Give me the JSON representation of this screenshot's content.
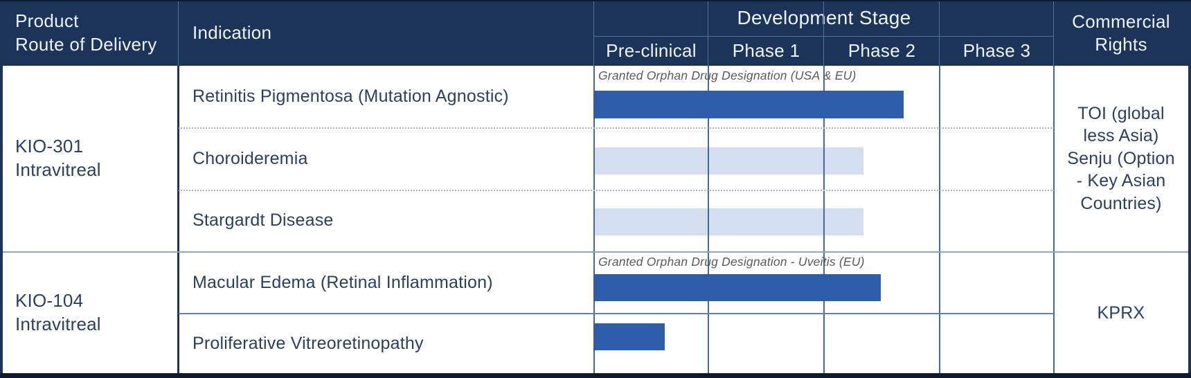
{
  "colors": {
    "header_bg": "#1c3459",
    "header_text": "#eef3fa",
    "body_text": "#2b3f60",
    "annotation_text": "#5a5a5a",
    "bar_dark": "#2e5ea9",
    "bar_light": "#d3deef",
    "gridline": "#3e6aa1",
    "gridline_header": "#51719b",
    "divider_dark": "#1c3459",
    "separator_group": "#8ba6c6",
    "separator_row": "#5f81ad",
    "separator_dotted": "#a9b2c4",
    "frame_dark": "#0d1b31"
  },
  "header": {
    "product_line1": "Product",
    "product_line2": "Route of Delivery",
    "indication": "Indication",
    "development_stage": "Development Stage",
    "stages": [
      "Pre-clinical",
      "Phase 1",
      "Phase 2",
      "Phase 3"
    ],
    "commercial_rights": "Commercial Rights"
  },
  "products": [
    {
      "name": "KIO-301",
      "route": "Intravitreal",
      "commercial_rights_lines": [
        "TOI (global",
        "less Asia)",
        "Senju (Option",
        "- Key Asian",
        "Countries)"
      ],
      "programs": [
        {
          "indication": "Retinitis Pigmentosa (Mutation Agnostic)",
          "annotation": "Granted Orphan Drug Designation (USA & EU)"
        },
        {
          "indication": "Choroideremia",
          "annotation": ""
        },
        {
          "indication": "Stargardt Disease",
          "annotation": ""
        }
      ]
    },
    {
      "name": "KIO-104",
      "route": "Intravitreal",
      "commercial_rights_lines": [
        "KPRX"
      ],
      "programs": [
        {
          "indication": "Macular Edema (Retinal Inflammation)",
          "annotation": "Granted Orphan Drug Designation - Uveitis (EU)"
        },
        {
          "indication": "Proliferative Vitreoretinopathy",
          "annotation": ""
        }
      ]
    }
  ],
  "chart_data": {
    "type": "bar",
    "orientation": "horizontal",
    "title": "Development Stage pipeline",
    "stage_axis": [
      "Pre-clinical",
      "Phase 1",
      "Phase 2",
      "Phase 3"
    ],
    "axis_range_stages": [
      0,
      4
    ],
    "grid": true,
    "rows": [
      {
        "product": "KIO-301 Intravitreal",
        "indication": "Retinitis Pigmentosa (Mutation Agnostic)",
        "progress_stages": 2.7,
        "stage_reached": "Phase 2",
        "bar_style": "dark",
        "annotation": "Granted Orphan Drug Designation (USA & EU)"
      },
      {
        "product": "KIO-301 Intravitreal",
        "indication": "Choroideremia",
        "progress_stages": 2.35,
        "stage_reached": "Phase 2",
        "bar_style": "light",
        "annotation": ""
      },
      {
        "product": "KIO-301 Intravitreal",
        "indication": "Stargardt Disease",
        "progress_stages": 2.35,
        "stage_reached": "Phase 2",
        "bar_style": "light",
        "annotation": ""
      },
      {
        "product": "KIO-104 Intravitreal",
        "indication": "Macular Edema (Retinal Inflammation)",
        "progress_stages": 2.5,
        "stage_reached": "Phase 2",
        "bar_style": "dark",
        "annotation": "Granted Orphan Drug Designation - Uveitis (EU)"
      },
      {
        "product": "KIO-104 Intravitreal",
        "indication": "Proliferative Vitreoretinopathy",
        "progress_stages": 0.62,
        "stage_reached": "Pre-clinical",
        "bar_style": "dark",
        "annotation": ""
      }
    ]
  }
}
